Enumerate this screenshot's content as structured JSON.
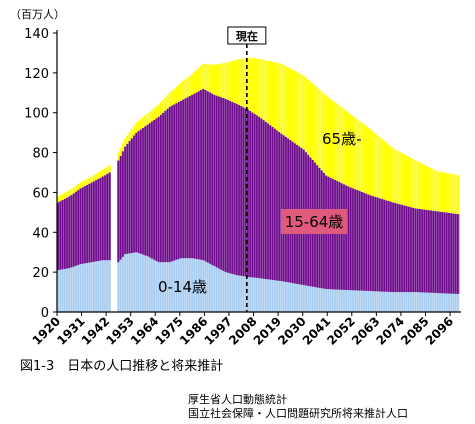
{
  "chart_data": {
    "type": "area",
    "stacked": true,
    "ylabel": "（百万人）",
    "ylim": [
      0,
      140
    ],
    "yticks": [
      0,
      20,
      40,
      60,
      80,
      100,
      120,
      140
    ],
    "xlim": [
      1920,
      2100
    ],
    "xticks": [
      "1920",
      "1931",
      "1942",
      "1953",
      "1964",
      "1975",
      "1986",
      "1997",
      "2008",
      "2019",
      "2030",
      "2041",
      "2052",
      "2063",
      "2074",
      "2085",
      "2096"
    ],
    "gap_years": [
      1944,
      1945,
      1946
    ],
    "current_marker": {
      "year": 2005,
      "label": "現在"
    },
    "years": [
      1920,
      1925,
      1930,
      1935,
      1940,
      1943,
      1947,
      1950,
      1955,
      1960,
      1965,
      1970,
      1975,
      1980,
      1985,
      1990,
      1995,
      2000,
      2005,
      2010,
      2020,
      2030,
      2040,
      2050,
      2060,
      2070,
      2080,
      2090,
      2100
    ],
    "series": [
      {
        "name": "0-14歳",
        "color": "#a9cdf0",
        "values": [
          21,
          22,
          24,
          25,
          26,
          26,
          25,
          29,
          30,
          28,
          25,
          25,
          27,
          27,
          26,
          23,
          20,
          18.5,
          17.6,
          17,
          15.5,
          13.5,
          11.5,
          11,
          10.5,
          10,
          10,
          9.5,
          9
        ]
      },
      {
        "name": "15-64歳",
        "color": "#6e0b8c",
        "values": [
          34,
          36,
          38,
          40,
          42,
          44,
          51,
          54,
          60,
          66,
          73,
          78,
          79,
          82,
          86,
          86,
          87,
          86,
          84,
          81,
          74,
          68,
          57,
          52,
          48,
          45,
          42,
          41,
          40
        ]
      },
      {
        "name": "65歳-",
        "color": "#ffff00",
        "values": [
          3,
          3,
          3,
          3,
          3.5,
          3.5,
          4,
          4,
          5,
          5.5,
          6,
          7,
          9,
          10.5,
          12.5,
          15,
          18,
          22,
          26,
          29,
          35,
          37,
          40,
          37,
          33,
          27,
          24,
          20,
          19.5
        ]
      }
    ],
    "annotations": [
      "0-14歳",
      "15-64歳",
      "65歳-"
    ]
  },
  "caption": "図1-3　日本の人口推移と将来推計",
  "source": [
    "厚生省人口動態統計",
    "国立社会保障・人口問題研究所将来推計人口"
  ]
}
